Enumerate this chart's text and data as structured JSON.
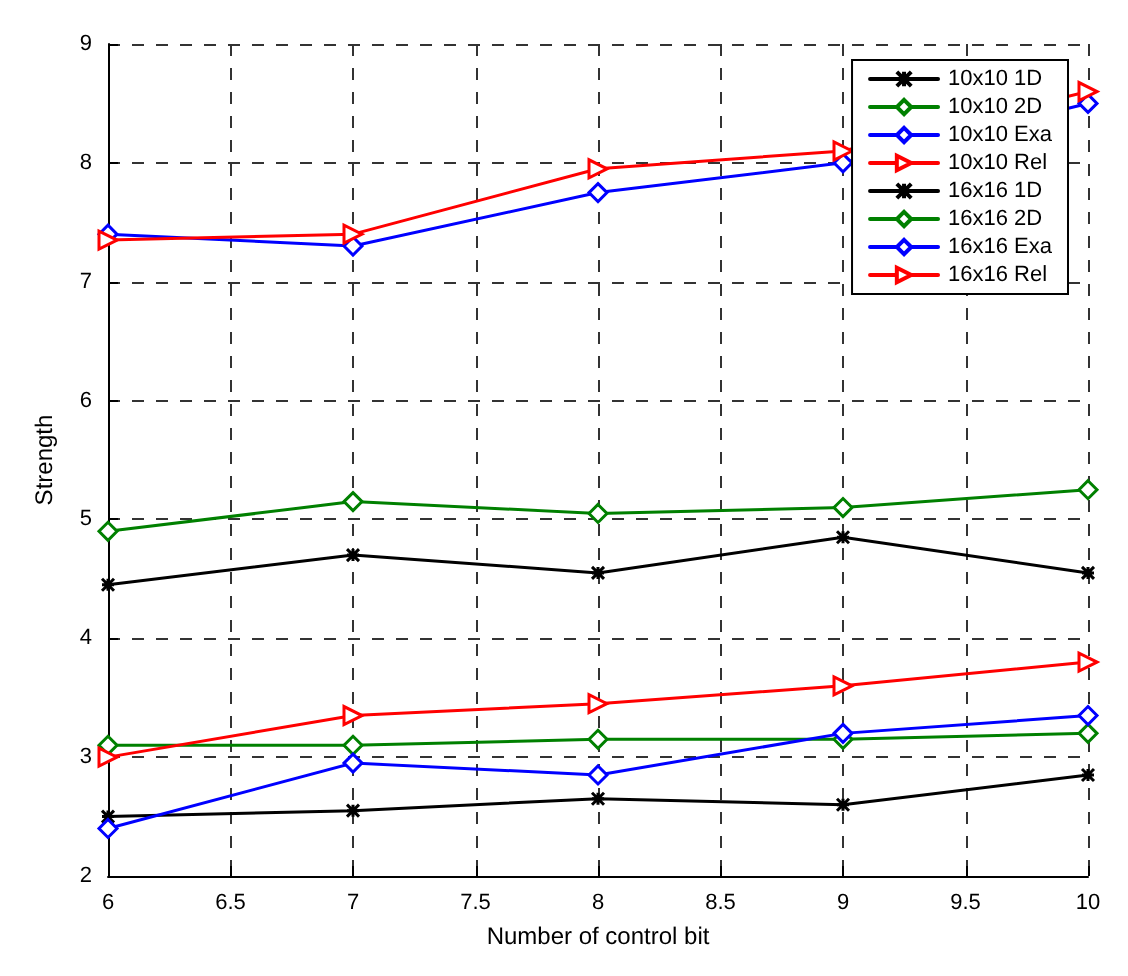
{
  "chart_data": {
    "type": "line",
    "xlabel": "Number of control bit",
    "ylabel": "Strength",
    "x": [
      6,
      7,
      8,
      9,
      10
    ],
    "xlim": [
      6,
      10
    ],
    "xticks": [
      6,
      6.5,
      7,
      7.5,
      8,
      8.5,
      9,
      9.5,
      10
    ],
    "ylim": [
      2,
      9
    ],
    "yticks": [
      2,
      3,
      4,
      5,
      6,
      7,
      8,
      9
    ],
    "grid": true,
    "legend": "top right",
    "line_style": "solid",
    "series": [
      {
        "name": "10x10 1D",
        "color": "#000000",
        "marker": "cross",
        "values": [
          2.5,
          2.55,
          2.65,
          2.6,
          2.85
        ]
      },
      {
        "name": "10x10 2D",
        "color": "#008000",
        "marker": "diamond",
        "values": [
          3.1,
          3.1,
          3.15,
          3.15,
          3.2
        ]
      },
      {
        "name": "10x10 Exa",
        "color": "#0000ff",
        "marker": "diamond",
        "values": [
          2.4,
          2.95,
          2.85,
          3.2,
          3.35
        ]
      },
      {
        "name": "10x10 Rel",
        "color": "#ff0000",
        "marker": "triangle",
        "values": [
          3.0,
          3.35,
          3.45,
          3.6,
          3.8
        ]
      },
      {
        "name": "16x16 1D",
        "color": "#000000",
        "marker": "cross",
        "values": [
          4.45,
          4.7,
          4.55,
          4.85,
          4.55
        ]
      },
      {
        "name": "16x16 2D",
        "color": "#008000",
        "marker": "diamond",
        "values": [
          4.9,
          5.15,
          5.05,
          5.1,
          5.25
        ]
      },
      {
        "name": "16x16 Exa",
        "color": "#0000ff",
        "marker": "diamond",
        "values": [
          7.4,
          7.3,
          7.75,
          8.0,
          8.5
        ]
      },
      {
        "name": "16x16 Rel",
        "color": "#ff0000",
        "marker": "triangle",
        "values": [
          7.35,
          7.4,
          7.95,
          8.1,
          8.6
        ]
      }
    ]
  }
}
